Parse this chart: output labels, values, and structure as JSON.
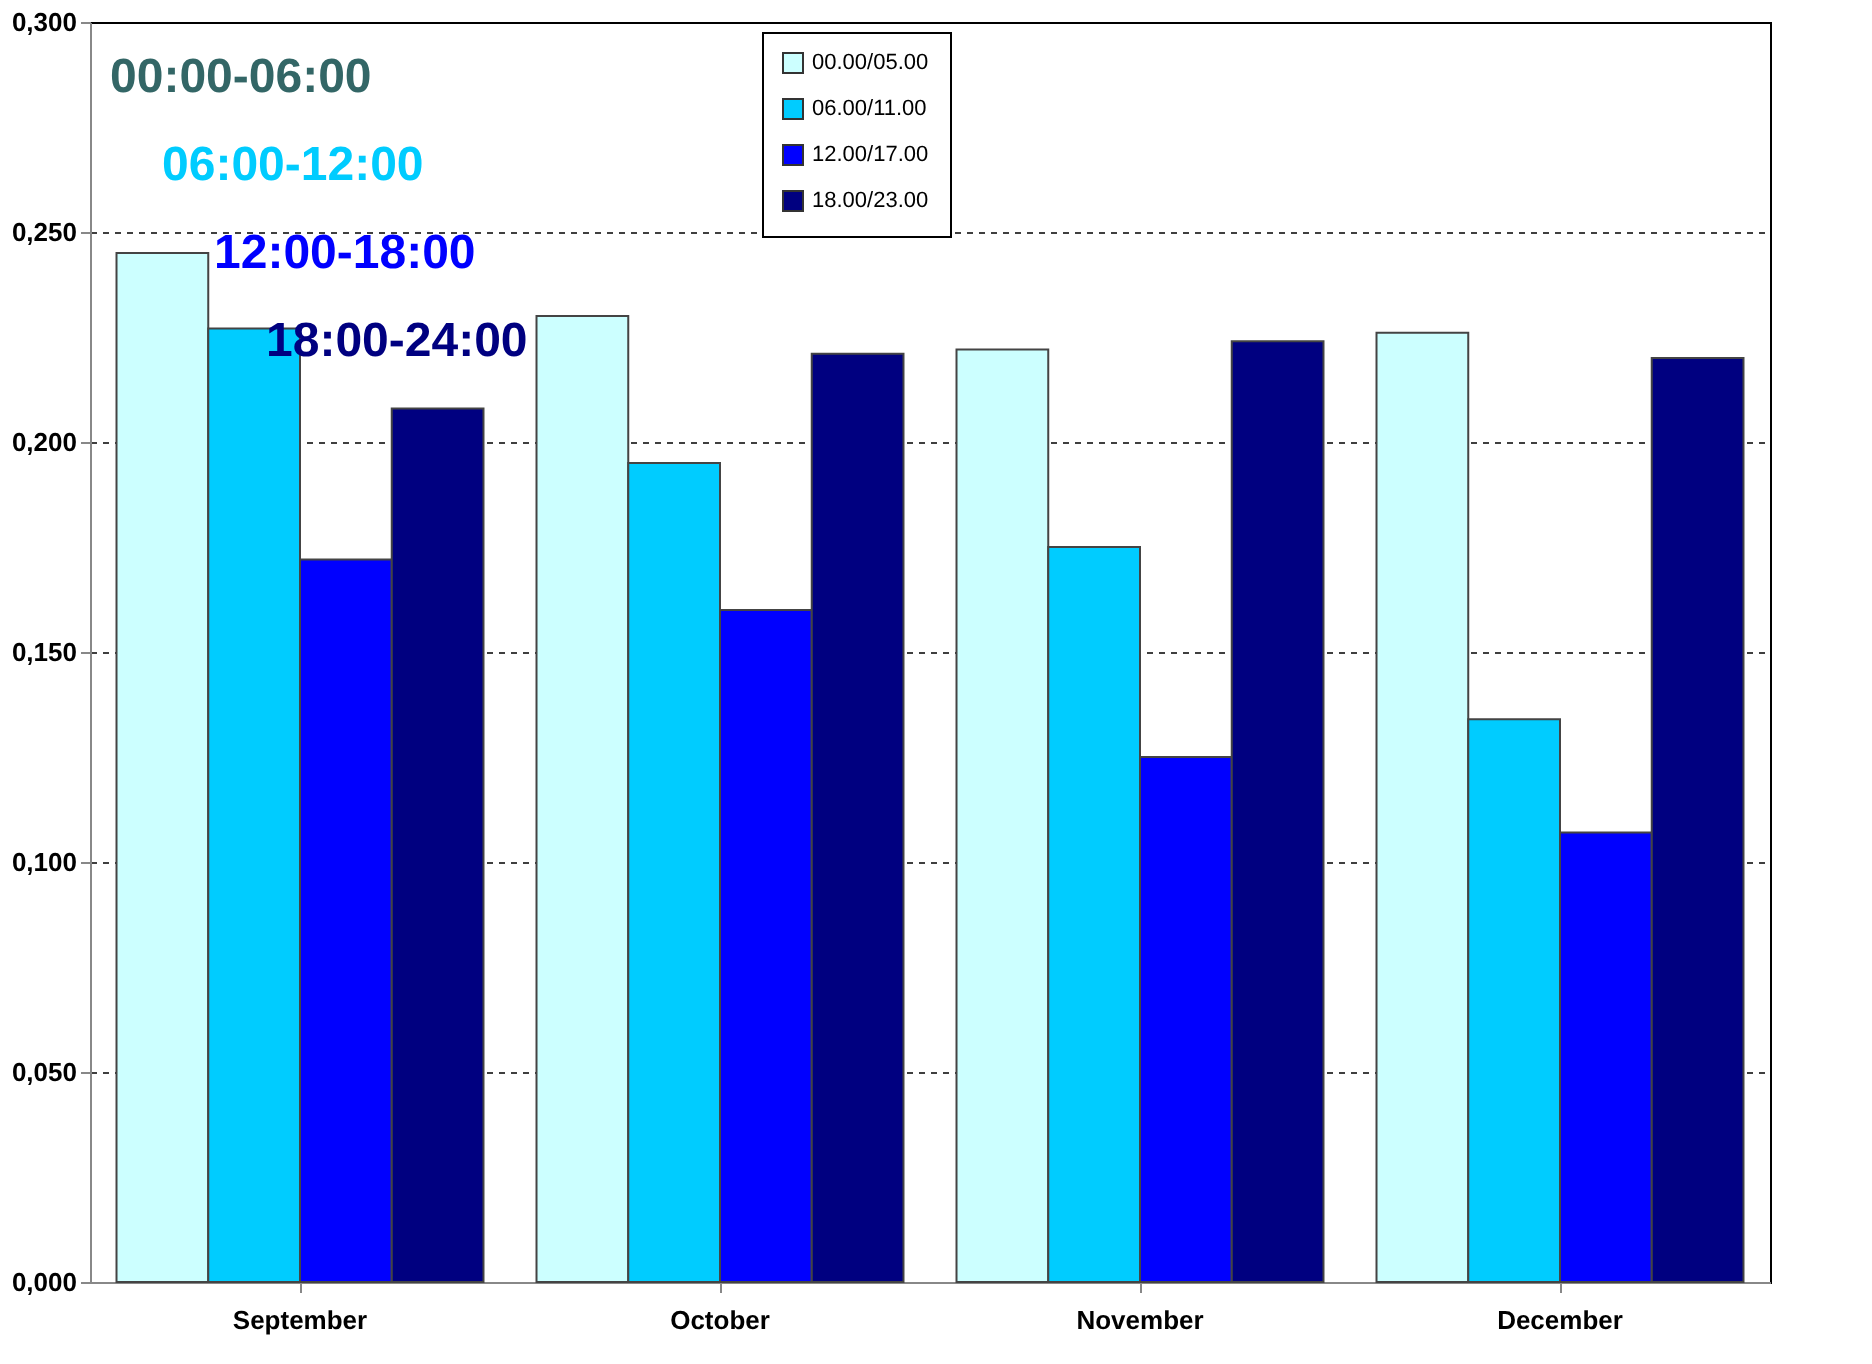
{
  "chart_data": {
    "type": "bar",
    "categories": [
      "September",
      "October",
      "November",
      "December"
    ],
    "series": [
      {
        "name": "00.00/05.00",
        "color": "#ccffff",
        "values": [
          0.245,
          0.23,
          0.222,
          0.226
        ]
      },
      {
        "name": "06.00/11.00",
        "color": "#00ccff",
        "values": [
          0.227,
          0.195,
          0.175,
          0.134
        ]
      },
      {
        "name": "12.00/17.00",
        "color": "#0000ff",
        "values": [
          0.172,
          0.16,
          0.125,
          0.107
        ]
      },
      {
        "name": "18.00/23.00",
        "color": "#000080",
        "values": [
          0.208,
          0.221,
          0.224,
          0.22
        ]
      }
    ],
    "ylim": [
      0,
      0.3
    ],
    "yticks": [
      {
        "value": 0,
        "label": "0,000"
      },
      {
        "value": 0.05,
        "label": "0,050"
      },
      {
        "value": 0.1,
        "label": "0,100"
      },
      {
        "value": 0.15,
        "label": "0,150"
      },
      {
        "value": 0.2,
        "label": "0,200"
      },
      {
        "value": 0.25,
        "label": "0,250"
      },
      {
        "value": 0.3,
        "label": "0,300"
      }
    ],
    "grid": "y",
    "legend": "top",
    "annotations": [
      "00:00-06:00",
      "06:00-12:00",
      "12:00-18:00",
      "18:00-24:00"
    ]
  }
}
